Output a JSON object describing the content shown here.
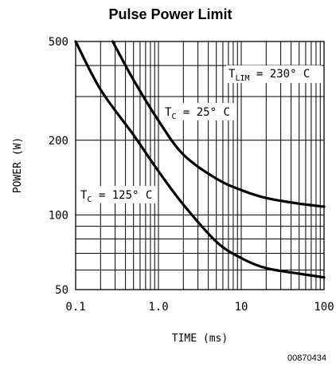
{
  "chart_data": {
    "type": "line",
    "title": "Pulse Power Limit",
    "xlabel": "TIME (ms)",
    "ylabel": "POWER (W)",
    "x_scale": "log",
    "y_scale": "log",
    "xlim": [
      0.1,
      100
    ],
    "ylim": [
      50,
      500
    ],
    "x_ticks": [
      "0.1",
      "1.0",
      "10",
      "100"
    ],
    "y_ticks": [
      "50",
      "100",
      "200",
      "500"
    ],
    "grid": true,
    "series": [
      {
        "label_main": "T",
        "label_sub": "C",
        "label_rest": " = 25° C",
        "color": "#000000",
        "points": [
          [
            0.28,
            500
          ],
          [
            0.5,
            350
          ],
          [
            1.0,
            240
          ],
          [
            2.0,
            175
          ],
          [
            5.0,
            140
          ],
          [
            10.0,
            126
          ],
          [
            20.0,
            117
          ],
          [
            50.0,
            111
          ],
          [
            100.0,
            108
          ]
        ]
      },
      {
        "label_main": "T",
        "label_sub": "C",
        "label_rest": " = 125° C",
        "color": "#000000",
        "points": [
          [
            0.1,
            500
          ],
          [
            0.2,
            320
          ],
          [
            0.5,
            210
          ],
          [
            1.0,
            150
          ],
          [
            2.0,
            110
          ],
          [
            5.0,
            78
          ],
          [
            10.0,
            67
          ],
          [
            20.0,
            61
          ],
          [
            50.0,
            58
          ],
          [
            100.0,
            56
          ]
        ]
      }
    ],
    "annotations": [
      {
        "main": "T",
        "sub": "LIM",
        "rest": " = 230° C"
      }
    ]
  },
  "figure_code": "00870434"
}
